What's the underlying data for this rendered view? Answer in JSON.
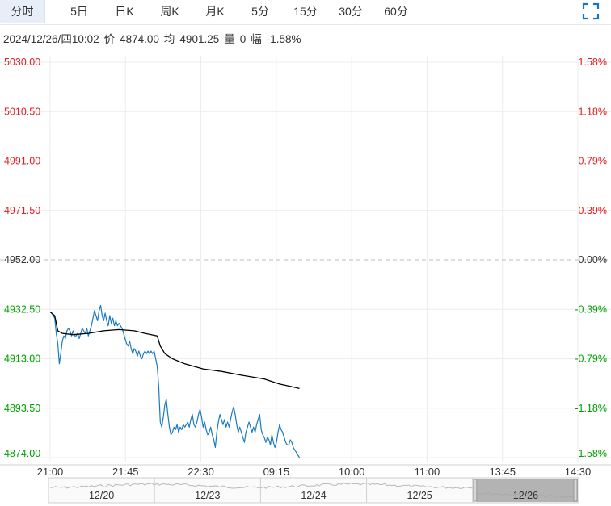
{
  "tabs": [
    "分时",
    "5日",
    "日K",
    "周K",
    "月K",
    "5分",
    "15分",
    "30分",
    "60分"
  ],
  "active_tab": "分时",
  "expand_icon": "fullscreen-icon",
  "info": {
    "datetime": "2024/12/26/四10:02",
    "price_label": "价",
    "price": "4874.00",
    "avg_label": "均",
    "avg": "4901.25",
    "volume_label": "量",
    "volume": "0",
    "change_label": "幅",
    "change": "-1.58%"
  },
  "colors": {
    "up": "#e02020",
    "down": "#00a000",
    "flat": "#333333",
    "price_line": "#1a7bbf",
    "avg_line": "#000000"
  },
  "chart_data": {
    "type": "line",
    "reference_price": 4952.0,
    "ylim": [
      4874.0,
      5030.0
    ],
    "y_ticks": [
      {
        "price": "5030.00",
        "pct": "1.58%",
        "trend": "up"
      },
      {
        "price": "5010.50",
        "pct": "1.18%",
        "trend": "up"
      },
      {
        "price": "4991.00",
        "pct": "0.79%",
        "trend": "up"
      },
      {
        "price": "4971.50",
        "pct": "0.39%",
        "trend": "up"
      },
      {
        "price": "4952.00",
        "pct": "0.00%",
        "trend": "flat"
      },
      {
        "price": "4932.50",
        "pct": "-0.39%",
        "trend": "down"
      },
      {
        "price": "4913.00",
        "pct": "-0.79%",
        "trend": "down"
      },
      {
        "price": "4893.50",
        "pct": "-1.18%",
        "trend": "down"
      },
      {
        "price": "4874.00",
        "pct": "-1.58%",
        "trend": "down"
      }
    ],
    "x_ticks": [
      "21:00",
      "21:45",
      "22:30",
      "09:15",
      "10:00",
      "11:00",
      "13:45",
      "14:30"
    ],
    "total_minutes": 345,
    "series": [
      {
        "role": "price",
        "points": [
          [
            0,
            4931.5
          ],
          [
            1,
            4931
          ],
          [
            2,
            4930
          ],
          [
            3,
            4929
          ],
          [
            4,
            4923
          ],
          [
            5,
            4919
          ],
          [
            6,
            4911
          ],
          [
            7,
            4915
          ],
          [
            8,
            4920
          ],
          [
            9,
            4922
          ],
          [
            10,
            4921
          ],
          [
            11,
            4924
          ],
          [
            12,
            4925
          ],
          [
            13,
            4924
          ],
          [
            14,
            4922
          ],
          [
            15,
            4924
          ],
          [
            16,
            4922
          ],
          [
            17,
            4922
          ],
          [
            18,
            4923
          ],
          [
            19,
            4921
          ],
          [
            20,
            4923
          ],
          [
            21,
            4925
          ],
          [
            22,
            4924
          ],
          [
            23,
            4923
          ],
          [
            24,
            4925
          ],
          [
            25,
            4922
          ],
          [
            26,
            4924
          ],
          [
            27,
            4926
          ],
          [
            28,
            4929
          ],
          [
            29,
            4932
          ],
          [
            30,
            4930
          ],
          [
            31,
            4928
          ],
          [
            32,
            4932
          ],
          [
            33,
            4934
          ],
          [
            34,
            4930
          ],
          [
            35,
            4928
          ],
          [
            36,
            4931
          ],
          [
            37,
            4928
          ],
          [
            38,
            4926
          ],
          [
            39,
            4930
          ],
          [
            40,
            4927
          ],
          [
            41,
            4929
          ],
          [
            42,
            4926
          ],
          [
            43,
            4928
          ],
          [
            44,
            4926
          ],
          [
            45,
            4927
          ],
          [
            46,
            4926
          ],
          [
            47,
            4925
          ],
          [
            48,
            4923
          ],
          [
            49,
            4921
          ],
          [
            50,
            4919
          ],
          [
            51,
            4918
          ],
          [
            52,
            4920
          ],
          [
            53,
            4917
          ],
          [
            54,
            4915
          ],
          [
            55,
            4917
          ],
          [
            56,
            4916
          ],
          [
            57,
            4914
          ],
          [
            58,
            4916
          ],
          [
            59,
            4914
          ],
          [
            60,
            4913
          ],
          [
            61,
            4915
          ],
          [
            62,
            4916
          ],
          [
            63,
            4915
          ],
          [
            64,
            4916
          ],
          [
            65,
            4915
          ],
          [
            66,
            4916
          ],
          [
            67,
            4915
          ],
          [
            68,
            4916
          ],
          [
            69,
            4913
          ],
          [
            70,
            4910
          ],
          [
            71,
            4902
          ],
          [
            72,
            4888
          ],
          [
            73,
            4886
          ],
          [
            74,
            4890
          ],
          [
            75,
            4895
          ],
          [
            76,
            4897
          ],
          [
            77,
            4891
          ],
          [
            78,
            4886
          ],
          [
            79,
            4883
          ],
          [
            80,
            4884
          ],
          [
            81,
            4886
          ],
          [
            82,
            4885
          ],
          [
            83,
            4887
          ],
          [
            84,
            4884
          ],
          [
            85,
            4886
          ],
          [
            86,
            4885
          ],
          [
            87,
            4887
          ],
          [
            88,
            4886
          ],
          [
            89,
            4887
          ],
          [
            90,
            4888
          ],
          [
            91,
            4886
          ],
          [
            92,
            4889
          ],
          [
            93,
            4891
          ],
          [
            94,
            4887
          ],
          [
            95,
            4886
          ],
          [
            96,
            4888
          ],
          [
            97,
            4891
          ],
          [
            98,
            4893
          ],
          [
            99,
            4890
          ],
          [
            100,
            4886
          ],
          [
            101,
            4888
          ],
          [
            102,
            4885
          ],
          [
            103,
            4883
          ],
          [
            104,
            4884
          ],
          [
            105,
            4886
          ],
          [
            106,
            4883
          ],
          [
            107,
            4881
          ],
          [
            108,
            4878
          ],
          [
            109,
            4884
          ],
          [
            110,
            4888
          ],
          [
            111,
            4891
          ],
          [
            112,
            4889
          ],
          [
            113,
            4887
          ],
          [
            114,
            4889
          ],
          [
            115,
            4886
          ],
          [
            116,
            4888
          ],
          [
            117,
            4886
          ],
          [
            118,
            4889
          ],
          [
            119,
            4892
          ],
          [
            120,
            4894
          ],
          [
            121,
            4891
          ],
          [
            122,
            4887
          ],
          [
            123,
            4884
          ],
          [
            124,
            4886
          ],
          [
            125,
            4884
          ],
          [
            126,
            4882
          ],
          [
            127,
            4880
          ],
          [
            128,
            4884
          ],
          [
            129,
            4886
          ],
          [
            130,
            4888
          ],
          [
            131,
            4886
          ],
          [
            132,
            4884
          ],
          [
            133,
            4886
          ],
          [
            134,
            4884
          ],
          [
            135,
            4887
          ],
          [
            136,
            4889
          ],
          [
            137,
            4891
          ],
          [
            138,
            4885
          ],
          [
            139,
            4883
          ],
          [
            140,
            4882
          ],
          [
            141,
            4880
          ],
          [
            142,
            4882
          ],
          [
            143,
            4881
          ],
          [
            144,
            4879
          ],
          [
            145,
            4883
          ],
          [
            146,
            4880
          ],
          [
            147,
            4878
          ],
          [
            148,
            4880
          ],
          [
            149,
            4884
          ],
          [
            150,
            4887
          ],
          [
            151,
            4885
          ],
          [
            152,
            4884
          ],
          [
            153,
            4882
          ],
          [
            154,
            4880
          ],
          [
            155,
            4879
          ],
          [
            156,
            4879
          ],
          [
            157,
            4881
          ],
          [
            158,
            4880
          ],
          [
            159,
            4878
          ],
          [
            160,
            4877
          ],
          [
            161,
            4876
          ],
          [
            162,
            4875
          ],
          [
            163,
            4874
          ]
        ]
      },
      {
        "role": "average",
        "points": [
          [
            0,
            4931.5
          ],
          [
            3,
            4930
          ],
          [
            5,
            4924
          ],
          [
            8,
            4923
          ],
          [
            15,
            4922.5
          ],
          [
            25,
            4923
          ],
          [
            35,
            4924
          ],
          [
            45,
            4924.5
          ],
          [
            55,
            4924
          ],
          [
            62,
            4923
          ],
          [
            70,
            4922
          ],
          [
            72,
            4918
          ],
          [
            75,
            4915
          ],
          [
            80,
            4913
          ],
          [
            88,
            4911
          ],
          [
            100,
            4909
          ],
          [
            112,
            4908
          ],
          [
            125,
            4906.5
          ],
          [
            140,
            4905
          ],
          [
            150,
            4903
          ],
          [
            158,
            4902
          ],
          [
            163,
            4901.25
          ]
        ]
      }
    ],
    "navigator_dates": [
      "12/20",
      "12/23",
      "12/24",
      "12/25",
      "12/26"
    ]
  }
}
